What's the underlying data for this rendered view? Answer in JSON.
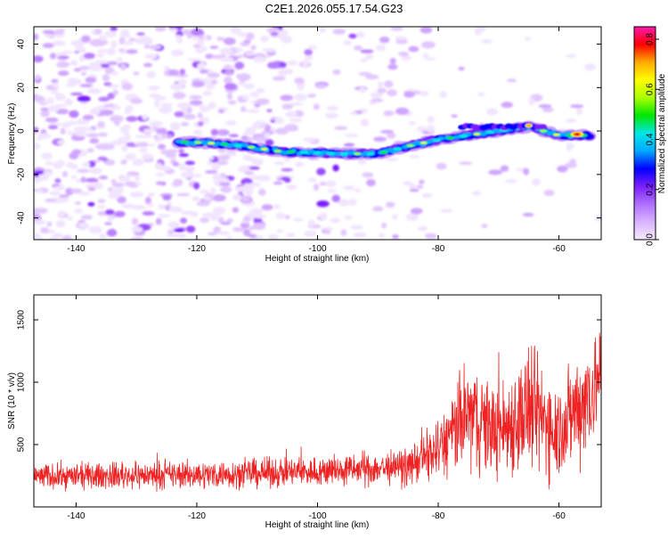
{
  "title": "C2E1.2026.055.17.54.G23",
  "chart_data": [
    {
      "type": "heatmap",
      "name": "spectrogram",
      "xlabel": "Height of straight line (km)",
      "ylabel": "Frequency (Hz)",
      "xlim": [
        -147,
        -53
      ],
      "ylim": [
        -50,
        48
      ],
      "xticks": [
        -140,
        -120,
        -100,
        -80,
        -60
      ],
      "yticks": [
        -40,
        -20,
        0,
        20,
        40
      ],
      "colorbar": {
        "label": "Normalized spectral amplitude",
        "range": [
          0.0,
          0.85
        ],
        "ticks": [
          0.0,
          0.2,
          0.4,
          0.6,
          0.8
        ],
        "colors": [
          "#f4eaff",
          "#d8b4ff",
          "#b070ff",
          "#7a1fff",
          "#0000ff",
          "#00aaff",
          "#00e6e6",
          "#00e600",
          "#aaff00",
          "#ffff00",
          "#ffaa00",
          "#ff0000",
          "#ff1ab0"
        ]
      },
      "ridge": {
        "description": "Dominant signal track",
        "points": [
          [
            -123,
            -5
          ],
          [
            -118,
            -5.5
          ],
          [
            -112,
            -7
          ],
          [
            -106,
            -9.5
          ],
          [
            -100,
            -10
          ],
          [
            -96,
            -10.5
          ],
          [
            -90,
            -10.5
          ],
          [
            -85,
            -7
          ],
          [
            -80,
            -4
          ],
          [
            -75,
            -2
          ],
          [
            -70,
            0
          ],
          [
            -65,
            2
          ],
          [
            -60,
            -2
          ],
          [
            -55,
            -2
          ]
        ]
      }
    },
    {
      "type": "line",
      "name": "snr",
      "xlabel": "Height of straight line (km)",
      "ylabel": "SNR (10 * v/v)",
      "xlim": [
        -147,
        -53
      ],
      "ylim": [
        0,
        1700
      ],
      "xticks": [
        -140,
        -120,
        -100,
        -80,
        -60
      ],
      "yticks": [
        500,
        1000,
        1500
      ],
      "color": "#ee2222",
      "envelope": [
        {
          "x": -147,
          "base": 200,
          "amp": 180
        },
        {
          "x": -120,
          "base": 210,
          "amp": 200
        },
        {
          "x": -100,
          "base": 230,
          "amp": 220
        },
        {
          "x": -85,
          "base": 260,
          "amp": 260
        },
        {
          "x": -80,
          "base": 350,
          "amp": 450
        },
        {
          "x": -75,
          "base": 550,
          "amp": 800
        },
        {
          "x": -70,
          "base": 450,
          "amp": 650
        },
        {
          "x": -65,
          "base": 550,
          "amp": 950
        },
        {
          "x": -60,
          "base": 450,
          "amp": 700
        },
        {
          "x": -55,
          "base": 700,
          "amp": 900
        },
        {
          "x": -53,
          "base": 900,
          "amp": 700
        }
      ]
    }
  ]
}
